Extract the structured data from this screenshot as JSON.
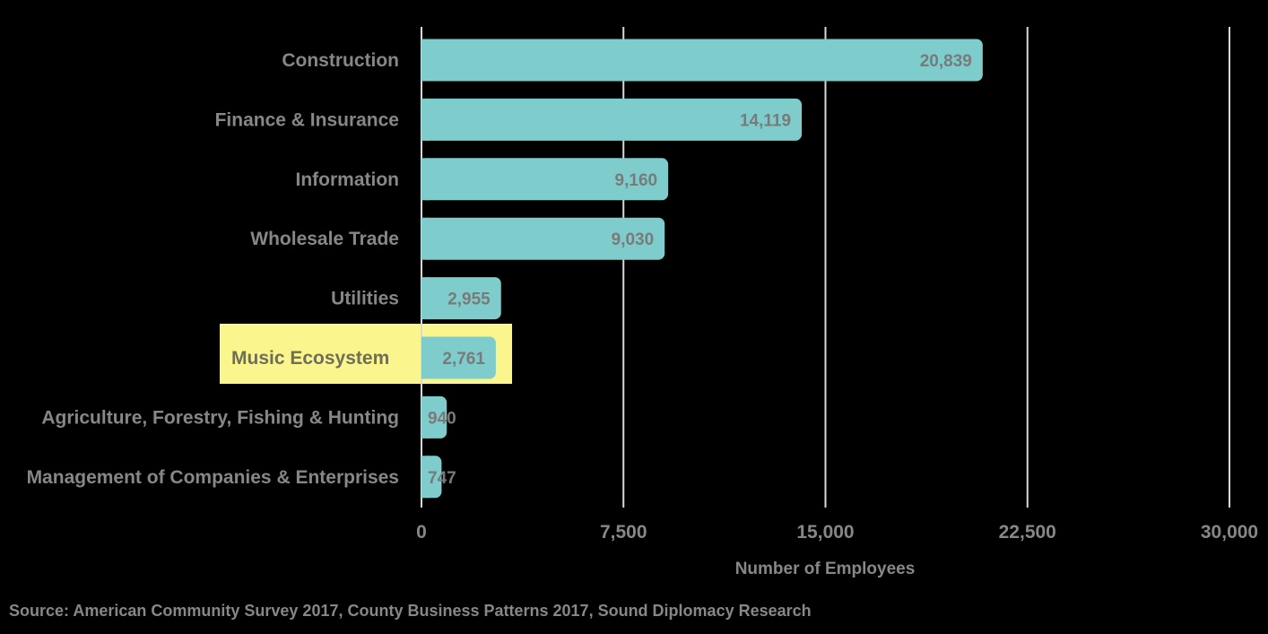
{
  "chart_data": {
    "type": "bar",
    "orientation": "horizontal",
    "categories": [
      "Construction",
      "Finance & Insurance",
      "Information",
      "Wholesale Trade",
      "Utilities",
      "Music Ecosystem",
      "Agriculture, Forestry, Fishing & Hunting",
      "Management of Companies & Enterprises"
    ],
    "values": [
      20839,
      14119,
      9160,
      9030,
      2955,
      2761,
      940,
      747
    ],
    "value_labels": [
      "20,839",
      "14,119",
      "9,160",
      "9,030",
      "2,955",
      "2,761",
      "940",
      "747"
    ],
    "highlighted_category": "Music Ecosystem",
    "xlabel": "Number of Employees",
    "ylabel": "",
    "xlim": [
      0,
      30000
    ],
    "x_ticks": [
      0,
      7500,
      15000,
      22500,
      30000
    ],
    "x_tick_labels": [
      "0",
      "7,500",
      "15,000",
      "22,500",
      "30,000"
    ],
    "grid": true,
    "source": "Source: American Community Survey 2017, County Business Patterns 2017, Sound Diplomacy Research",
    "colors": {
      "background": "#000000",
      "bar": "#7ecccc",
      "text": "#878787",
      "value_text": "#7a7a7a",
      "grid": "#d9d9d9",
      "highlight_box": "#faf58c",
      "highlight_text": "#6e6e5a"
    }
  }
}
